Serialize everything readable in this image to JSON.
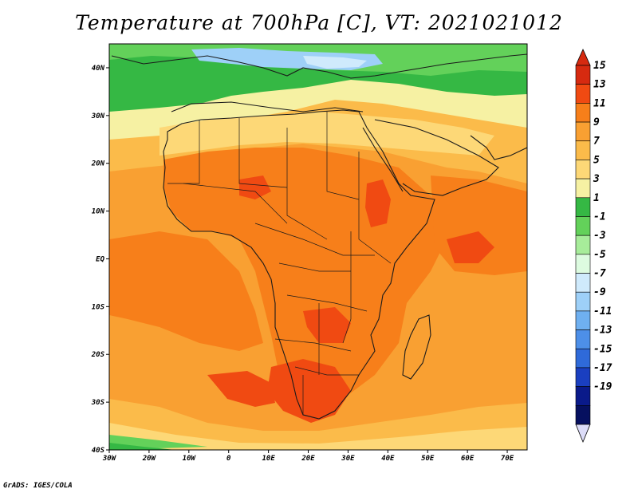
{
  "title": "Temperature at 700hPa [C], VT: 2021021012",
  "credit": "GrADS: IGES/COLA",
  "map": {
    "region": "Africa",
    "lon_range": [
      -30,
      75
    ],
    "lat_range": [
      -40,
      45
    ],
    "x_ticks": [
      "30W",
      "20W",
      "10W",
      "0",
      "10E",
      "20E",
      "30E",
      "40E",
      "50E",
      "60E",
      "70E"
    ],
    "y_ticks": [
      "40N",
      "30N",
      "20N",
      "10N",
      "EQ",
      "10S",
      "20S",
      "30S",
      "40S"
    ]
  },
  "colorbar": {
    "labels": [
      "15",
      "13",
      "11",
      "9",
      "7",
      "5",
      "3",
      "1",
      "-1",
      "-3",
      "-5",
      "-7",
      "-9",
      "-11",
      "-13",
      "-15",
      "-17",
      "-19"
    ],
    "colors": [
      "#d62a10",
      "#f04a12",
      "#f77f1a",
      "#f9a032",
      "#fbbb4a",
      "#fdd877",
      "#f6f1a3",
      "#35b844",
      "#63d15a",
      "#a7ec9a",
      "#ddfbe0",
      "#cfeafc",
      "#9ed0f8",
      "#6fb0f0",
      "#4d8fe8",
      "#2f6ad9",
      "#1a3fc0",
      "#0a1a8a",
      "#06105f"
    ],
    "top_color": "#d62a10",
    "bottom_color": "#dcdcf8"
  },
  "colors": {
    "sea_orange": "#f9a032",
    "land_orange": "#f77f1a",
    "hot": "#f04a12",
    "north_green": "#35b844",
    "north_lightgreen": "#63d15a",
    "north_blue": "#9ed0f8",
    "sahara_tan": "#fbbb4a",
    "coast": "#1a1a1a"
  }
}
